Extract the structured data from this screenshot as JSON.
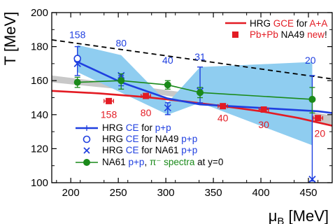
{
  "chart_data": {
    "type": "scatter",
    "xlabel": "μB [MeV]",
    "ylabel": "T [MeV]",
    "xlim": [
      180,
      475
    ],
    "ylim": [
      100,
      200
    ],
    "x_ticks": [
      200,
      250,
      300,
      350,
      400,
      450
    ],
    "y_ticks": [
      100,
      120,
      140,
      160,
      180,
      200
    ],
    "grid": false,
    "legend_top": {
      "placement": "top-right",
      "items": [
        {
          "parts": [
            {
              "text": "HRG ",
              "color": "#000000"
            },
            {
              "text": "GCE",
              "color": "#e31b23"
            },
            {
              "text": " for ",
              "color": "#000000"
            },
            {
              "text": "A+A",
              "color": "#e31b23"
            }
          ]
        },
        {
          "parts": [
            {
              "text": "Pb+Pb",
              "color": "#e31b23"
            },
            {
              "text": " NA49 ",
              "color": "#000000"
            },
            {
              "text": "new",
              "color": "#e31b23"
            },
            {
              "text": "!",
              "color": "#000000"
            }
          ]
        }
      ]
    },
    "legend_bottom": {
      "placement": "bottom-left",
      "items": [
        {
          "parts": [
            {
              "text": "HRG ",
              "color": "#000000"
            },
            {
              "text": "CE",
              "color": "#1f3fe0"
            },
            {
              "text": " for ",
              "color": "#000000"
            },
            {
              "text": "p+p",
              "color": "#1f3fe0"
            }
          ]
        },
        {
          "parts": [
            {
              "text": "HRG ",
              "color": "#000000"
            },
            {
              "text": "CE",
              "color": "#1f3fe0"
            },
            {
              "text": " for NA49 ",
              "color": "#000000"
            },
            {
              "text": "p+p",
              "color": "#1f3fe0"
            }
          ]
        },
        {
          "parts": [
            {
              "text": "HRG ",
              "color": "#000000"
            },
            {
              "text": "CE",
              "color": "#1f3fe0"
            },
            {
              "text": " for NA61 ",
              "color": "#000000"
            },
            {
              "text": "p+p",
              "color": "#1f3fe0"
            }
          ]
        },
        {
          "parts": [
            {
              "text": "NA61 ",
              "color": "#000000"
            },
            {
              "text": "p+p",
              "color": "#1f3fe0"
            },
            {
              "text": ", ",
              "color": "#000000"
            },
            {
              "text": "π⁻ spectra",
              "color": "#1a8a1a"
            },
            {
              "text": " at y=0",
              "color": "#000000"
            }
          ]
        }
      ]
    },
    "annotations_blue": [
      {
        "text": "158",
        "x": 207,
        "y": 185
      },
      {
        "text": "80",
        "x": 253,
        "y": 180
      },
      {
        "text": "40",
        "x": 302,
        "y": 170
      },
      {
        "text": "31",
        "x": 336,
        "y": 172
      },
      {
        "text": "20",
        "x": 452,
        "y": 170
      }
    ],
    "annotations_red": [
      {
        "text": "158",
        "x": 240,
        "y": 138
      },
      {
        "text": "80",
        "x": 279,
        "y": 139
      },
      {
        "text": "40",
        "x": 360,
        "y": 136
      },
      {
        "text": "30",
        "x": 403,
        "y": 132
      },
      {
        "text": "20",
        "x": 462,
        "y": 127
      }
    ],
    "series": [
      {
        "kind": "dashed_line",
        "color": "#000000",
        "x": [
          180,
          475
        ],
        "y": [
          184,
          161
        ]
      },
      {
        "kind": "gray_band",
        "color": "#c8c8c8",
        "x": [
          180,
          260,
          320,
          360,
          410,
          475
        ],
        "y_low": [
          159,
          154.5,
          149.5,
          145.5,
          140.5,
          133
        ],
        "y_high": [
          163,
          157.5,
          153,
          149.5,
          145.5,
          139.5
        ]
      },
      {
        "kind": "red_line",
        "color": "#e31b23",
        "x": [
          180,
          230,
          280,
          320,
          360,
          400,
          440,
          475
        ],
        "y": [
          154,
          152.5,
          150.3,
          147.8,
          145,
          142,
          138,
          133.5
        ]
      },
      {
        "kind": "blue_band",
        "color": "#8fcdf0",
        "x": [
          207,
          253,
          302,
          336,
          454
        ],
        "y_low": [
          165,
          153,
          140,
          147,
          122
        ],
        "y_high": [
          181,
          175,
          147,
          168,
          171
        ]
      },
      {
        "kind": "blue_line",
        "color": "#1f3fe0",
        "x": [
          207,
          253,
          302,
          336,
          460,
          475
        ],
        "y": [
          171,
          159,
          149.5,
          146,
          142,
          141
        ],
        "errors": [
          [
            207,
            163,
            180
          ],
          [
            253,
            157,
            163
          ],
          [
            302,
            140,
            147
          ],
          [
            336,
            147,
            168
          ],
          [
            454,
            101,
            163
          ]
        ]
      },
      {
        "kind": "open_circle",
        "name": "HRG CE for NA49 p+p",
        "color": "#1f3fe0",
        "x": [
          207
        ],
        "y": [
          173
        ]
      },
      {
        "kind": "cross",
        "name": "HRG CE for NA61 p+p",
        "color": "#1f3fe0",
        "x": [
          207,
          253,
          302,
          336,
          454
        ],
        "y": [
          170,
          163,
          144,
          154,
          102
        ]
      },
      {
        "kind": "green_line",
        "name": "NA61 p+p, π⁻ spectra at y=0",
        "color": "#1a8a1a",
        "x": [
          207,
          253,
          302,
          336,
          454
        ],
        "y": [
          159,
          160,
          157.5,
          153,
          149
        ],
        "errors": [
          [
            207,
            156,
            162
          ],
          [
            253,
            155,
            164
          ],
          [
            302,
            155,
            160
          ],
          [
            336,
            150,
            156
          ],
          [
            454,
            141,
            156
          ]
        ]
      },
      {
        "kind": "red_square",
        "name": "Pb+Pb NA49 new!",
        "color": "#e31b23",
        "x": [
          240,
          279,
          360,
          403,
          460
        ],
        "y": [
          148,
          151,
          145,
          143,
          138
        ],
        "xerr": [
          5,
          5,
          5,
          5,
          5
        ],
        "yerr": [
          1.5,
          1.5,
          1.5,
          1.5,
          1.5
        ]
      }
    ]
  }
}
